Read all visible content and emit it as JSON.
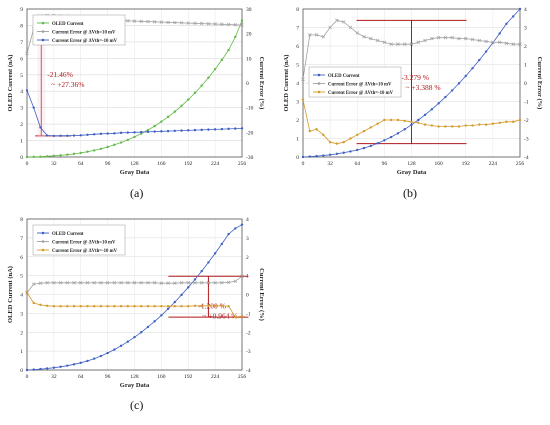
{
  "chart_data": [
    {
      "type": "line",
      "panel_label": "(a)",
      "xlabel": "Gray Data",
      "ylabel": "OLED Current (nA)",
      "y2label": "Current Error (%)",
      "xlim": [
        0,
        256
      ],
      "ylim": [
        0,
        9
      ],
      "y2lim": [
        -30,
        30
      ],
      "xticks": [
        0,
        32,
        64,
        96,
        128,
        160,
        192,
        224,
        256
      ],
      "yticks": [
        0,
        1,
        2,
        3,
        4,
        5,
        6,
        7,
        8,
        9
      ],
      "y2ticks": [
        -30,
        -20,
        -10,
        0,
        10,
        20,
        30
      ],
      "legend_position": "top-left",
      "annotation": {
        "line1": "-21.46%",
        "line2": "~ +27.36%",
        "y2_low": -21.46,
        "y2_high": 27.36,
        "x": 17
      },
      "series": [
        {
          "name": "OLED Current",
          "axis": "left",
          "color": "#63b84a",
          "marker": "circle",
          "x": [
            0,
            8,
            16,
            24,
            32,
            40,
            48,
            56,
            64,
            72,
            80,
            88,
            96,
            104,
            112,
            120,
            128,
            136,
            144,
            152,
            160,
            168,
            176,
            184,
            192,
            200,
            208,
            216,
            224,
            232,
            240,
            248,
            256
          ],
          "y": [
            0.0,
            0.01,
            0.02,
            0.04,
            0.07,
            0.1,
            0.14,
            0.19,
            0.25,
            0.32,
            0.4,
            0.5,
            0.61,
            0.74,
            0.88,
            1.04,
            1.22,
            1.42,
            1.64,
            1.88,
            2.15,
            2.44,
            2.76,
            3.11,
            3.49,
            3.9,
            4.34,
            4.82,
            5.34,
            5.9,
            6.5,
            7.3,
            8.3
          ]
        },
        {
          "name": "Current Error @ ΔVth=10 mV",
          "axis": "right",
          "color": "#a0a0a0",
          "marker": "x",
          "x": [
            0,
            8,
            16,
            24,
            32,
            40,
            48,
            56,
            64,
            72,
            80,
            88,
            96,
            104,
            112,
            120,
            128,
            136,
            144,
            152,
            160,
            168,
            176,
            184,
            192,
            200,
            208,
            216,
            224,
            232,
            240,
            248,
            256
          ],
          "y": [
            12,
            22,
            27,
            27.4,
            27.36,
            27.2,
            27.1,
            27,
            26.8,
            26.4,
            26,
            25.7,
            25.5,
            25.4,
            25.3,
            25.2,
            25.1,
            25,
            24.9,
            24.8,
            24.7,
            24.6,
            24.5,
            24.4,
            24.3,
            24.2,
            24.1,
            24,
            23.9,
            23.8,
            23.7,
            23.6,
            23.5
          ]
        },
        {
          "name": "Current Error @ ΔVth=-10 mV",
          "axis": "right",
          "color": "#3e5fc4",
          "marker": "circle",
          "x": [
            0,
            8,
            16,
            24,
            32,
            40,
            48,
            56,
            64,
            72,
            80,
            88,
            96,
            104,
            112,
            120,
            128,
            136,
            144,
            152,
            160,
            168,
            176,
            184,
            192,
            200,
            208,
            216,
            224,
            232,
            240,
            248,
            256
          ],
          "y": [
            -3,
            -10,
            -18,
            -21.3,
            -21.46,
            -21.4,
            -21.4,
            -21.3,
            -21.2,
            -21,
            -20.8,
            -20.6,
            -20.5,
            -20.4,
            -20.2,
            -20.1,
            -20,
            -19.9,
            -19.8,
            -19.7,
            -19.6,
            -19.5,
            -19.4,
            -19.3,
            -19.2,
            -19.1,
            -19,
            -18.9,
            -18.8,
            -18.7,
            -18.6,
            -18.5,
            -18.4
          ]
        }
      ]
    },
    {
      "type": "line",
      "panel_label": "(b)",
      "xlabel": "Gray Data",
      "ylabel": "OLED Current (nA)",
      "y2label": "Current Error (%)",
      "xlim": [
        0,
        256
      ],
      "ylim": [
        0,
        8
      ],
      "y2lim": [
        -4,
        4
      ],
      "xticks": [
        0,
        32,
        64,
        96,
        128,
        160,
        192,
        224,
        256
      ],
      "yticks": [
        0,
        1,
        2,
        3,
        4,
        5,
        6,
        7,
        8
      ],
      "y2ticks": [
        -4,
        -3,
        -2,
        -1,
        0,
        1,
        2,
        3,
        4
      ],
      "legend_position": "left",
      "annotation": {
        "line1": "-3.279 %",
        "line2": "~ +3.388 %",
        "y2_low": -3.279,
        "y2_high": 3.388,
        "x": 128
      },
      "series": [
        {
          "name": "OLED Current",
          "axis": "left",
          "color": "#3e5fc4",
          "marker": "circle",
          "x": [
            0,
            8,
            16,
            24,
            32,
            40,
            48,
            56,
            64,
            72,
            80,
            88,
            96,
            104,
            112,
            120,
            128,
            136,
            144,
            152,
            160,
            168,
            176,
            184,
            192,
            200,
            208,
            216,
            224,
            232,
            240,
            248,
            256
          ],
          "y": [
            0.0,
            0.02,
            0.05,
            0.08,
            0.12,
            0.17,
            0.23,
            0.3,
            0.38,
            0.48,
            0.6,
            0.74,
            0.9,
            1.08,
            1.28,
            1.5,
            1.74,
            2.0,
            2.28,
            2.58,
            2.9,
            3.24,
            3.6,
            3.98,
            4.38,
            4.8,
            5.24,
            5.7,
            6.18,
            6.68,
            7.2,
            7.6,
            8.0
          ]
        },
        {
          "name": "Current Error @ ΔVth=10 mV",
          "axis": "right",
          "color": "#a0a0a0",
          "marker": "x",
          "x": [
            0,
            8,
            16,
            24,
            32,
            40,
            48,
            56,
            64,
            72,
            80,
            88,
            96,
            104,
            112,
            120,
            128,
            136,
            144,
            152,
            160,
            168,
            176,
            184,
            192,
            200,
            208,
            216,
            224,
            232,
            240,
            248,
            256
          ],
          "y": [
            0.2,
            2.6,
            2.6,
            2.5,
            3.0,
            3.388,
            3.3,
            3.0,
            2.7,
            2.5,
            2.4,
            2.3,
            2.2,
            2.1,
            2.1,
            2.1,
            2.1,
            2.2,
            2.3,
            2.4,
            2.45,
            2.45,
            2.45,
            2.4,
            2.4,
            2.35,
            2.3,
            2.25,
            2.2,
            2.2,
            2.15,
            2.1,
            2.1
          ]
        },
        {
          "name": "Current Error @ ΔVth=-10 mV",
          "axis": "right",
          "color": "#d49a2a",
          "marker": "circle",
          "x": [
            0,
            8,
            16,
            24,
            32,
            40,
            48,
            56,
            64,
            72,
            80,
            88,
            96,
            104,
            112,
            120,
            128,
            136,
            144,
            152,
            160,
            168,
            176,
            184,
            192,
            200,
            208,
            216,
            224,
            232,
            240,
            248,
            256
          ],
          "y": [
            -0.9,
            -2.6,
            -2.5,
            -2.8,
            -3.2,
            -3.279,
            -3.2,
            -3.0,
            -2.8,
            -2.6,
            -2.4,
            -2.2,
            -2.0,
            -2.0,
            -2.0,
            -2.05,
            -2.1,
            -2.15,
            -2.25,
            -2.3,
            -2.35,
            -2.35,
            -2.35,
            -2.35,
            -2.3,
            -2.3,
            -2.25,
            -2.25,
            -2.2,
            -2.15,
            -2.1,
            -2.1,
            -2.0
          ]
        }
      ]
    },
    {
      "type": "line",
      "panel_label": "(c)",
      "xlabel": "Gray Data",
      "ylabel": "OLED Current (nA)",
      "y2label": "Current Error (%)",
      "xlim": [
        0,
        256
      ],
      "ylim": [
        0,
        8
      ],
      "y2lim": [
        -4,
        4
      ],
      "xticks": [
        0,
        32,
        64,
        96,
        128,
        160,
        192,
        224,
        256
      ],
      "yticks": [
        0,
        1,
        2,
        3,
        4,
        5,
        6,
        7,
        8
      ],
      "y2ticks": [
        -4,
        -3,
        -2,
        -1,
        0,
        1,
        2,
        3,
        4
      ],
      "legend_position": "top-left",
      "annotation": {
        "line1": "-1.200 %",
        "line2": "~ +0.964 %",
        "y2_low": -1.2,
        "y2_high": 0.964,
        "x": 216
      },
      "series": [
        {
          "name": "OLED Current",
          "axis": "left",
          "color": "#3e5fc4",
          "marker": "circle",
          "x": [
            0,
            8,
            16,
            24,
            32,
            40,
            48,
            56,
            64,
            72,
            80,
            88,
            96,
            104,
            112,
            120,
            128,
            136,
            144,
            152,
            160,
            168,
            176,
            184,
            192,
            200,
            208,
            216,
            224,
            232,
            240,
            248,
            256
          ],
          "y": [
            0.0,
            0.02,
            0.05,
            0.08,
            0.12,
            0.17,
            0.23,
            0.3,
            0.38,
            0.48,
            0.6,
            0.74,
            0.9,
            1.08,
            1.28,
            1.5,
            1.74,
            2.0,
            2.28,
            2.58,
            2.9,
            3.24,
            3.6,
            3.98,
            4.38,
            4.8,
            5.24,
            5.7,
            6.18,
            6.68,
            7.2,
            7.5,
            7.7
          ]
        },
        {
          "name": "Current Error @ ΔVth=10 mV",
          "axis": "right",
          "color": "#a0a0a0",
          "marker": "x",
          "x": [
            0,
            8,
            16,
            24,
            32,
            40,
            48,
            56,
            64,
            72,
            80,
            88,
            96,
            104,
            112,
            120,
            128,
            136,
            144,
            152,
            160,
            168,
            176,
            184,
            192,
            200,
            208,
            216,
            224,
            232,
            240,
            248,
            256
          ],
          "y": [
            0.1,
            0.55,
            0.6,
            0.62,
            0.62,
            0.62,
            0.62,
            0.62,
            0.62,
            0.62,
            0.62,
            0.62,
            0.62,
            0.62,
            0.62,
            0.62,
            0.62,
            0.62,
            0.62,
            0.62,
            0.6,
            0.6,
            0.6,
            0.62,
            0.62,
            0.62,
            0.62,
            0.62,
            0.62,
            0.62,
            0.64,
            0.7,
            0.964
          ]
        },
        {
          "name": "Current Error @ ΔVth=-10 mV",
          "axis": "right",
          "color": "#d49a2a",
          "marker": "circle",
          "x": [
            0,
            8,
            16,
            24,
            32,
            40,
            48,
            56,
            64,
            72,
            80,
            88,
            96,
            104,
            112,
            120,
            128,
            136,
            144,
            152,
            160,
            168,
            176,
            184,
            192,
            200,
            208,
            216,
            224,
            232,
            240,
            248,
            256
          ],
          "y": [
            0.1,
            -0.45,
            -0.55,
            -0.6,
            -0.62,
            -0.62,
            -0.62,
            -0.62,
            -0.62,
            -0.62,
            -0.62,
            -0.62,
            -0.62,
            -0.62,
            -0.62,
            -0.62,
            -0.62,
            -0.62,
            -0.62,
            -0.62,
            -0.62,
            -0.62,
            -0.62,
            -0.62,
            -0.62,
            -0.6,
            -0.6,
            -0.6,
            -0.6,
            -0.6,
            -0.62,
            -1.2,
            -1.15
          ]
        }
      ]
    }
  ]
}
